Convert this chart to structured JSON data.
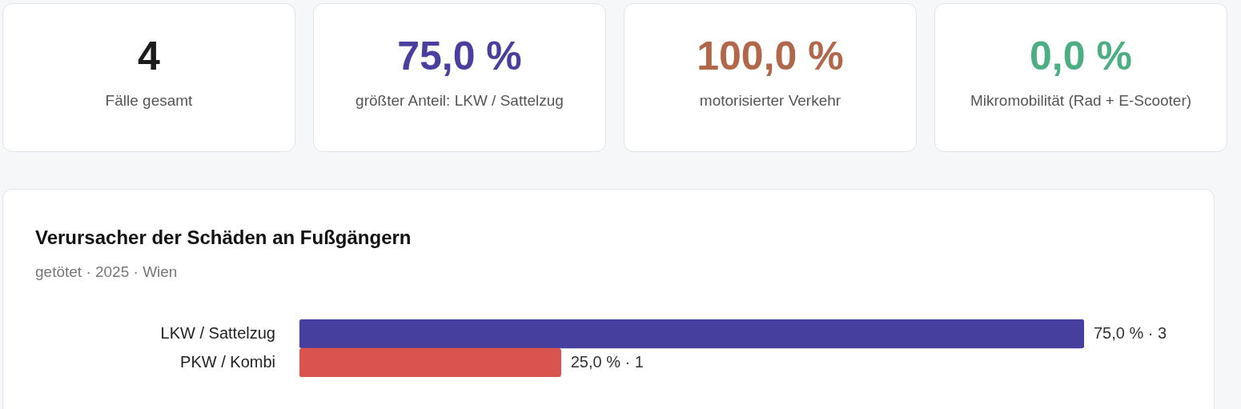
{
  "chart_data": [
    {
      "type": "other",
      "title": "4",
      "subtitle": "Fälle gesamt",
      "color": "#1c1c1c"
    },
    {
      "type": "other",
      "title": "75,0 %",
      "subtitle": "größter Anteil: LKW / Sattelzug",
      "color": "#4a3f9e"
    },
    {
      "type": "other",
      "title": "100,0 %",
      "subtitle": "motorisierter Verkehr",
      "color": "#b0674a"
    },
    {
      "type": "other",
      "title": "0,0 %",
      "subtitle": "Mikromobilität (Rad + E-Scooter)",
      "color": "#4caf84"
    },
    {
      "type": "bar",
      "title": "Verursacher der Schäden an Fußgängern",
      "subtitle": "getötet · 2025 · Wien",
      "orientation": "horizontal",
      "tick_labels": "y",
      "categories": [
        "LKW / Sattelzug",
        "PKW / Kombi"
      ],
      "values": [
        75,
        25
      ],
      "colors": [
        "#463f9e",
        "#d9534f"
      ],
      "value_labels": [
        "75,0 % · 3",
        "25,0 % · 1"
      ]
    }
  ]
}
